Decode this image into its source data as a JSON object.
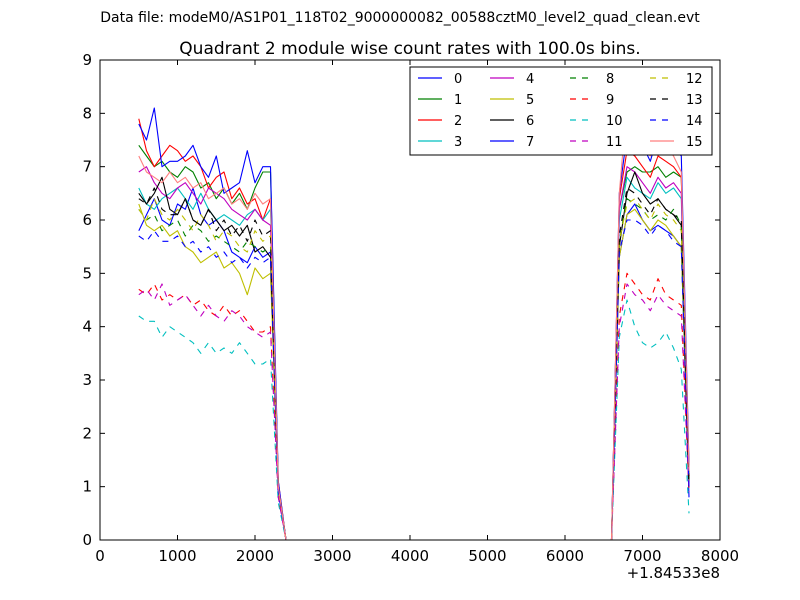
{
  "figure": {
    "suptitle": "Data file: modeM0/AS1P01_118T02_9000000082_00588cztM0_level2_quad_clean.evt"
  },
  "chart_data": {
    "type": "line",
    "title": "Quadrant 2 module wise count rates with 100.0s bins.",
    "xlabel": "",
    "ylabel": "",
    "x_offset_label": "+1.84533e8",
    "xlim": [
      0,
      8000
    ],
    "ylim": [
      0,
      9
    ],
    "xticks": [
      0,
      1000,
      2000,
      3000,
      4000,
      5000,
      6000,
      7000,
      8000
    ],
    "yticks": [
      0,
      1,
      2,
      3,
      4,
      5,
      6,
      7,
      8,
      9
    ],
    "legend_position": "top-right",
    "x": [
      500,
      600,
      700,
      800,
      900,
      1000,
      1100,
      1200,
      1300,
      1400,
      1500,
      1600,
      1700,
      1800,
      1900,
      2000,
      2100,
      2200,
      2300,
      2400,
      6600,
      6700,
      6800,
      6900,
      7000,
      7100,
      7200,
      7300,
      7400,
      7500,
      7600
    ],
    "series": [
      {
        "name": "0",
        "color": "#0000ff",
        "dash": false,
        "values": [
          5.8,
          6.1,
          6.4,
          6.0,
          5.9,
          6.3,
          6.2,
          6.6,
          6.1,
          5.9,
          6.0,
          5.8,
          5.4,
          5.3,
          5.2,
          5.5,
          5.3,
          5.4,
          0.9,
          0.0,
          0.0,
          5.3,
          6.1,
          6.3,
          6.0,
          5.8,
          5.9,
          5.8,
          5.7,
          5.5,
          0.8
        ]
      },
      {
        "name": "1",
        "color": "#008000",
        "dash": false,
        "values": [
          7.4,
          7.2,
          7.0,
          7.1,
          6.9,
          6.8,
          7.0,
          6.9,
          6.6,
          6.7,
          6.4,
          6.6,
          6.3,
          6.5,
          6.2,
          6.6,
          6.9,
          6.9,
          1.0,
          0.0,
          0.0,
          6.2,
          6.9,
          7.0,
          6.9,
          6.9,
          7.0,
          6.8,
          6.9,
          6.8,
          1.2
        ]
      },
      {
        "name": "2",
        "color": "#ff0000",
        "dash": false,
        "values": [
          7.9,
          7.3,
          7.0,
          7.2,
          7.4,
          7.3,
          7.1,
          7.2,
          7.0,
          6.6,
          6.8,
          6.9,
          6.4,
          6.6,
          6.3,
          6.4,
          6.0,
          6.4,
          1.1,
          0.0,
          0.0,
          6.4,
          7.3,
          7.2,
          7.0,
          6.8,
          7.2,
          7.1,
          7.0,
          6.8,
          1.3
        ]
      },
      {
        "name": "3",
        "color": "#00bfbf",
        "dash": false,
        "values": [
          6.6,
          6.3,
          6.2,
          6.4,
          6.5,
          6.6,
          6.4,
          6.2,
          6.5,
          6.2,
          6.0,
          6.1,
          6.0,
          5.9,
          6.1,
          6.2,
          6.0,
          6.2,
          1.0,
          0.0,
          0.0,
          6.0,
          6.8,
          6.6,
          6.5,
          6.4,
          6.7,
          6.5,
          6.6,
          6.4,
          1.2
        ]
      },
      {
        "name": "4",
        "color": "#bf00bf",
        "dash": false,
        "values": [
          6.9,
          7.0,
          6.7,
          6.5,
          6.4,
          6.6,
          6.7,
          6.5,
          6.3,
          6.6,
          6.5,
          6.4,
          6.2,
          6.1,
          6.0,
          6.2,
          6.0,
          5.9,
          1.0,
          0.0,
          0.0,
          6.2,
          7.0,
          6.9,
          6.7,
          6.5,
          6.8,
          6.6,
          6.7,
          6.5,
          1.2
        ]
      },
      {
        "name": "5",
        "color": "#bfbf00",
        "dash": false,
        "values": [
          6.3,
          5.9,
          5.8,
          5.9,
          5.7,
          5.8,
          5.5,
          5.4,
          5.2,
          5.3,
          5.4,
          5.1,
          5.2,
          5.0,
          4.6,
          5.1,
          4.9,
          5.0,
          0.9,
          0.0,
          0.0,
          5.3,
          6.1,
          6.2,
          6.0,
          5.8,
          6.0,
          5.9,
          5.7,
          5.5,
          1.0
        ]
      },
      {
        "name": "6",
        "color": "#000000",
        "dash": false,
        "values": [
          6.5,
          6.3,
          6.5,
          6.8,
          6.2,
          6.1,
          6.4,
          6.0,
          5.9,
          6.2,
          6.0,
          5.8,
          5.9,
          5.7,
          5.9,
          5.4,
          5.5,
          5.3,
          1.0,
          0.0,
          0.0,
          5.5,
          6.5,
          6.9,
          6.5,
          6.3,
          6.4,
          6.2,
          6.1,
          5.9,
          1.0
        ]
      },
      {
        "name": "7",
        "color": "#0000ff",
        "dash": false,
        "values": [
          7.8,
          7.5,
          8.1,
          7.0,
          7.1,
          7.1,
          7.2,
          7.4,
          7.0,
          6.8,
          7.2,
          6.5,
          6.6,
          6.7,
          7.3,
          6.7,
          7.0,
          7.0,
          1.1,
          0.0,
          0.0,
          6.5,
          7.6,
          7.8,
          7.4,
          7.1,
          7.6,
          7.5,
          7.4,
          7.2,
          1.4
        ]
      },
      {
        "name": "8",
        "color": "#008000",
        "dash": true,
        "values": [
          6.2,
          6.0,
          6.1,
          5.8,
          5.9,
          6.0,
          5.7,
          5.9,
          5.8,
          5.6,
          5.7,
          5.6,
          5.5,
          5.4,
          5.6,
          5.5,
          5.4,
          5.5,
          1.0,
          0.0,
          0.0,
          5.6,
          6.4,
          6.3,
          6.2,
          6.0,
          6.1,
          6.0,
          6.2,
          5.9,
          1.1
        ]
      },
      {
        "name": "9",
        "color": "#ff0000",
        "dash": true,
        "values": [
          4.7,
          4.6,
          4.8,
          4.5,
          4.6,
          4.5,
          4.6,
          4.4,
          4.5,
          4.3,
          4.2,
          4.4,
          4.2,
          4.3,
          4.1,
          3.9,
          3.9,
          4.0,
          0.8,
          0.0,
          0.0,
          4.2,
          5.0,
          4.8,
          4.6,
          4.5,
          4.9,
          4.6,
          4.5,
          4.4,
          0.9
        ]
      },
      {
        "name": "10",
        "color": "#00bfbf",
        "dash": true,
        "values": [
          4.2,
          4.1,
          4.1,
          3.8,
          4.0,
          3.9,
          3.8,
          3.7,
          3.5,
          3.7,
          3.5,
          3.6,
          3.5,
          3.7,
          3.5,
          3.3,
          3.3,
          3.4,
          0.7,
          0.0,
          0.0,
          3.8,
          4.5,
          4.0,
          3.7,
          3.6,
          3.7,
          3.9,
          3.6,
          3.2,
          0.5
        ]
      },
      {
        "name": "11",
        "color": "#bf00bf",
        "dash": true,
        "values": [
          4.6,
          4.7,
          4.5,
          4.8,
          4.4,
          4.5,
          4.6,
          4.4,
          4.2,
          4.4,
          4.2,
          4.1,
          4.3,
          4.2,
          4.0,
          3.9,
          3.8,
          3.9,
          0.8,
          0.0,
          0.0,
          4.0,
          4.8,
          4.6,
          4.5,
          4.3,
          4.6,
          4.4,
          4.3,
          4.2,
          0.9
        ]
      },
      {
        "name": "12",
        "color": "#bfbf00",
        "dash": true,
        "values": [
          6.2,
          6.0,
          6.4,
          6.1,
          6.0,
          6.2,
          6.0,
          5.8,
          6.1,
          5.9,
          5.6,
          5.8,
          5.7,
          5.5,
          5.4,
          5.8,
          5.6,
          5.7,
          1.0,
          0.0,
          0.0,
          5.6,
          6.3,
          6.4,
          6.2,
          6.0,
          6.3,
          6.1,
          6.0,
          5.8,
          1.1
        ]
      },
      {
        "name": "13",
        "color": "#000000",
        "dash": true,
        "values": [
          6.4,
          6.3,
          6.6,
          6.2,
          6.1,
          6.1,
          6.4,
          6.0,
          5.9,
          6.2,
          5.8,
          6.0,
          5.7,
          5.9,
          5.6,
          6.0,
          5.7,
          5.8,
          1.0,
          0.0,
          0.0,
          5.7,
          6.6,
          6.5,
          6.3,
          6.1,
          6.4,
          6.2,
          6.1,
          6.0,
          1.1
        ]
      },
      {
        "name": "14",
        "color": "#0000ff",
        "dash": true,
        "values": [
          5.7,
          5.6,
          5.8,
          5.6,
          5.6,
          5.7,
          5.5,
          5.6,
          5.4,
          5.5,
          5.3,
          5.4,
          5.2,
          5.3,
          5.1,
          5.3,
          5.2,
          5.3,
          0.9,
          0.0,
          0.0,
          5.4,
          6.0,
          6.0,
          5.9,
          5.7,
          5.9,
          5.8,
          5.6,
          5.5,
          1.0
        ]
      },
      {
        "name": "15",
        "color": "#ff7f7f",
        "dash": false,
        "values": [
          7.2,
          6.9,
          6.8,
          6.7,
          6.9,
          6.7,
          6.8,
          6.6,
          6.7,
          6.4,
          6.5,
          6.6,
          6.3,
          6.4,
          6.2,
          6.5,
          6.3,
          6.4,
          1.0,
          0.0,
          0.0,
          6.5,
          8.2,
          8.1,
          7.4,
          7.2,
          7.6,
          7.4,
          7.2,
          6.9,
          1.3
        ]
      }
    ]
  }
}
